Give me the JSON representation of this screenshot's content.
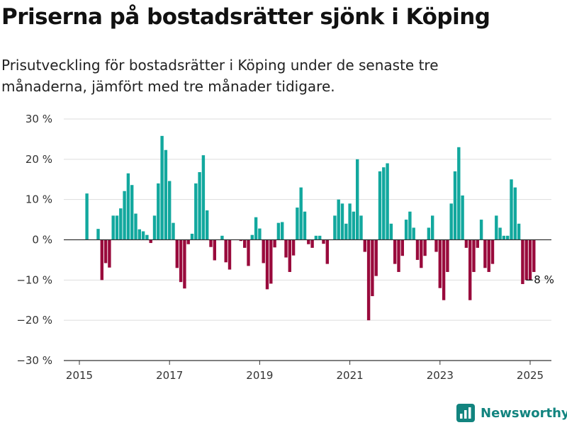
{
  "title": "Priserna på bostadsrätter sjönk i Köping",
  "subtitle": "Prisutveckling för bostadsrätter i Köping under de senaste tre månaderna, jämfört med tre månader tidigare.",
  "brand": {
    "name": "Newsworthy",
    "icon": "newsworthy-logo-icon",
    "color": "#12847f"
  },
  "colors": {
    "positive": "#12a89e",
    "negative": "#990a3c",
    "zero_line": "#333333",
    "grid": "#dddddd"
  },
  "chart_data": {
    "type": "bar",
    "x_start": "2015-01",
    "x_unit": "month",
    "values": [
      null,
      null,
      11.5,
      null,
      null,
      2.7,
      -10,
      -5.8,
      -6.9,
      6,
      6,
      7.8,
      12.1,
      16.5,
      13.6,
      6.5,
      2.6,
      2.1,
      1.2,
      -0.8,
      6,
      14,
      25.8,
      22.3,
      14.6,
      4.2,
      -7,
      -10.5,
      -12.1,
      -1.1,
      1.5,
      14,
      16.8,
      21,
      7.3,
      -1.8,
      -5.1,
      null,
      1,
      -5.6,
      -7.4,
      null,
      null,
      -0.3,
      -2,
      -6.5,
      1.2,
      5.6,
      2.8,
      -5.8,
      -12.3,
      -10.9,
      -1.9,
      4.2,
      4.4,
      -4.4,
      -8,
      -3.9,
      8,
      13,
      7,
      -1.1,
      -2,
      1,
      1,
      -1,
      -6,
      null,
      6,
      10,
      9,
      4,
      9,
      7,
      20,
      6,
      -3,
      -20,
      -14,
      -9,
      17,
      18,
      19,
      4,
      -6,
      -8,
      -4,
      5,
      7,
      3,
      -5,
      -7,
      -4,
      3,
      6,
      -3,
      -12,
      -15,
      -8,
      9,
      17,
      23,
      11,
      -2,
      -15,
      -8,
      -2,
      5,
      -7,
      -8,
      -6,
      6,
      3,
      1,
      1,
      15,
      13,
      4,
      -11,
      -10,
      -10,
      -8
    ],
    "annotation": {
      "text": "−8 %",
      "index": 121
    },
    "ylim": [
      -30,
      30
    ],
    "y_ticks": [
      30,
      20,
      10,
      0,
      -10,
      -20,
      -30
    ],
    "y_tick_labels": [
      "30 %",
      "20 %",
      "10 %",
      "0 %",
      "−10 %",
      "−20 %",
      "−30 %"
    ],
    "x_ticks": [
      "2015-01",
      "2017-01",
      "2019-01",
      "2021-01",
      "2023-01",
      "2025-01"
    ],
    "x_tick_labels": [
      "2015",
      "2017",
      "2019",
      "2021",
      "2023",
      "2025"
    ],
    "grid": true,
    "legend": "none"
  }
}
